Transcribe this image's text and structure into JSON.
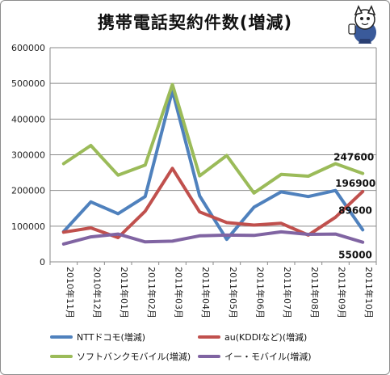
{
  "title": "携帯電話契約件数(増減)",
  "chart_data": {
    "type": "line",
    "categories": [
      "2010年11月",
      "2010年12月",
      "2011年01月",
      "2011年02月",
      "2011年03月",
      "2011年04月",
      "2011年05月",
      "2011年06月",
      "2011年07月",
      "2011年08月",
      "2011年09月",
      "2011年10月"
    ],
    "ylim": [
      0,
      600000
    ],
    "yticks": [
      "0",
      "100000",
      "200000",
      "300000",
      "400000",
      "500000",
      "600000"
    ],
    "grid": true,
    "legend_position": "bottom",
    "series": [
      {
        "name": "NTTドコモ(増減)",
        "color": "#4f81bd",
        "values": [
          85000,
          168000,
          135000,
          183000,
          480000,
          185000,
          63000,
          153000,
          196000,
          183000,
          200000,
          89600
        ]
      },
      {
        "name": "au(KDDIなど)(増減)",
        "color": "#c0504d",
        "values": [
          83000,
          95000,
          68000,
          142000,
          262000,
          140000,
          110000,
          103000,
          108000,
          75000,
          125000,
          196900
        ]
      },
      {
        "name": "ソフトバンクモバイル(増減)",
        "color": "#9bbb59",
        "values": [
          275000,
          326000,
          243000,
          271000,
          497000,
          241000,
          298000,
          193000,
          245000,
          240000,
          275000,
          247600
        ]
      },
      {
        "name": "イー・モバイル(増減)",
        "color": "#8064a2",
        "values": [
          50000,
          70000,
          78000,
          56000,
          58000,
          73000,
          75000,
          74000,
          84000,
          77000,
          78000,
          55000
        ]
      }
    ],
    "end_labels": [
      {
        "series": 2,
        "text": "247600"
      },
      {
        "series": 1,
        "text": "196900"
      },
      {
        "series": 0,
        "text": "89600"
      },
      {
        "series": 3,
        "text": "55000"
      }
    ]
  },
  "mascot_icon": "mascot-icon"
}
